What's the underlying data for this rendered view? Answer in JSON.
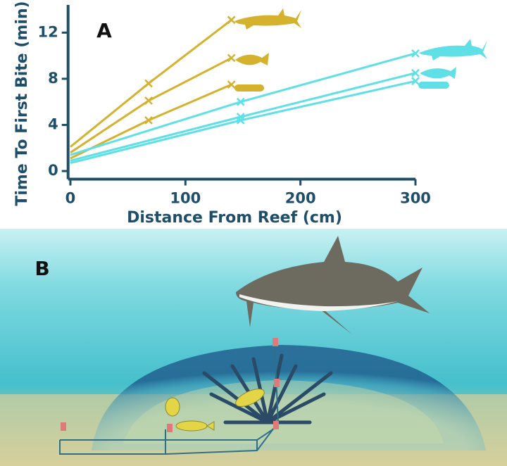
{
  "panel_labels": [
    "A",
    "B"
  ],
  "chart_data": {
    "type": "line",
    "xlabel": "Distance From Reef (cm)",
    "ylabel": "Time To First Bite (min)",
    "xlim": [
      -2,
      300
    ],
    "ylim": [
      -0.7,
      14.4
    ],
    "xticks": [
      0,
      100,
      200,
      300
    ],
    "yticks": [
      0,
      4,
      8,
      12
    ],
    "series": [
      {
        "color": "#d4b22e",
        "x": [
          0,
          68,
          140
        ],
        "values": [
          2.1,
          7.6,
          13.1
        ]
      },
      {
        "color": "#d4b22e",
        "x": [
          0,
          68,
          140
        ],
        "values": [
          1.6,
          6.1,
          9.8
        ]
      },
      {
        "color": "#d4b22e",
        "x": [
          0,
          68,
          140
        ],
        "values": [
          1.1,
          4.4,
          7.5
        ]
      },
      {
        "color": "#5fe0e6",
        "x": [
          0,
          148,
          300
        ],
        "values": [
          1.4,
          6.0,
          10.2
        ]
      },
      {
        "color": "#5fe0e6",
        "x": [
          0,
          148,
          300
        ],
        "values": [
          0.9,
          4.7,
          8.5
        ]
      },
      {
        "color": "#5fe0e6",
        "x": [
          0,
          148,
          300
        ],
        "values": [
          0.7,
          4.4,
          7.8
        ]
      }
    ]
  }
}
